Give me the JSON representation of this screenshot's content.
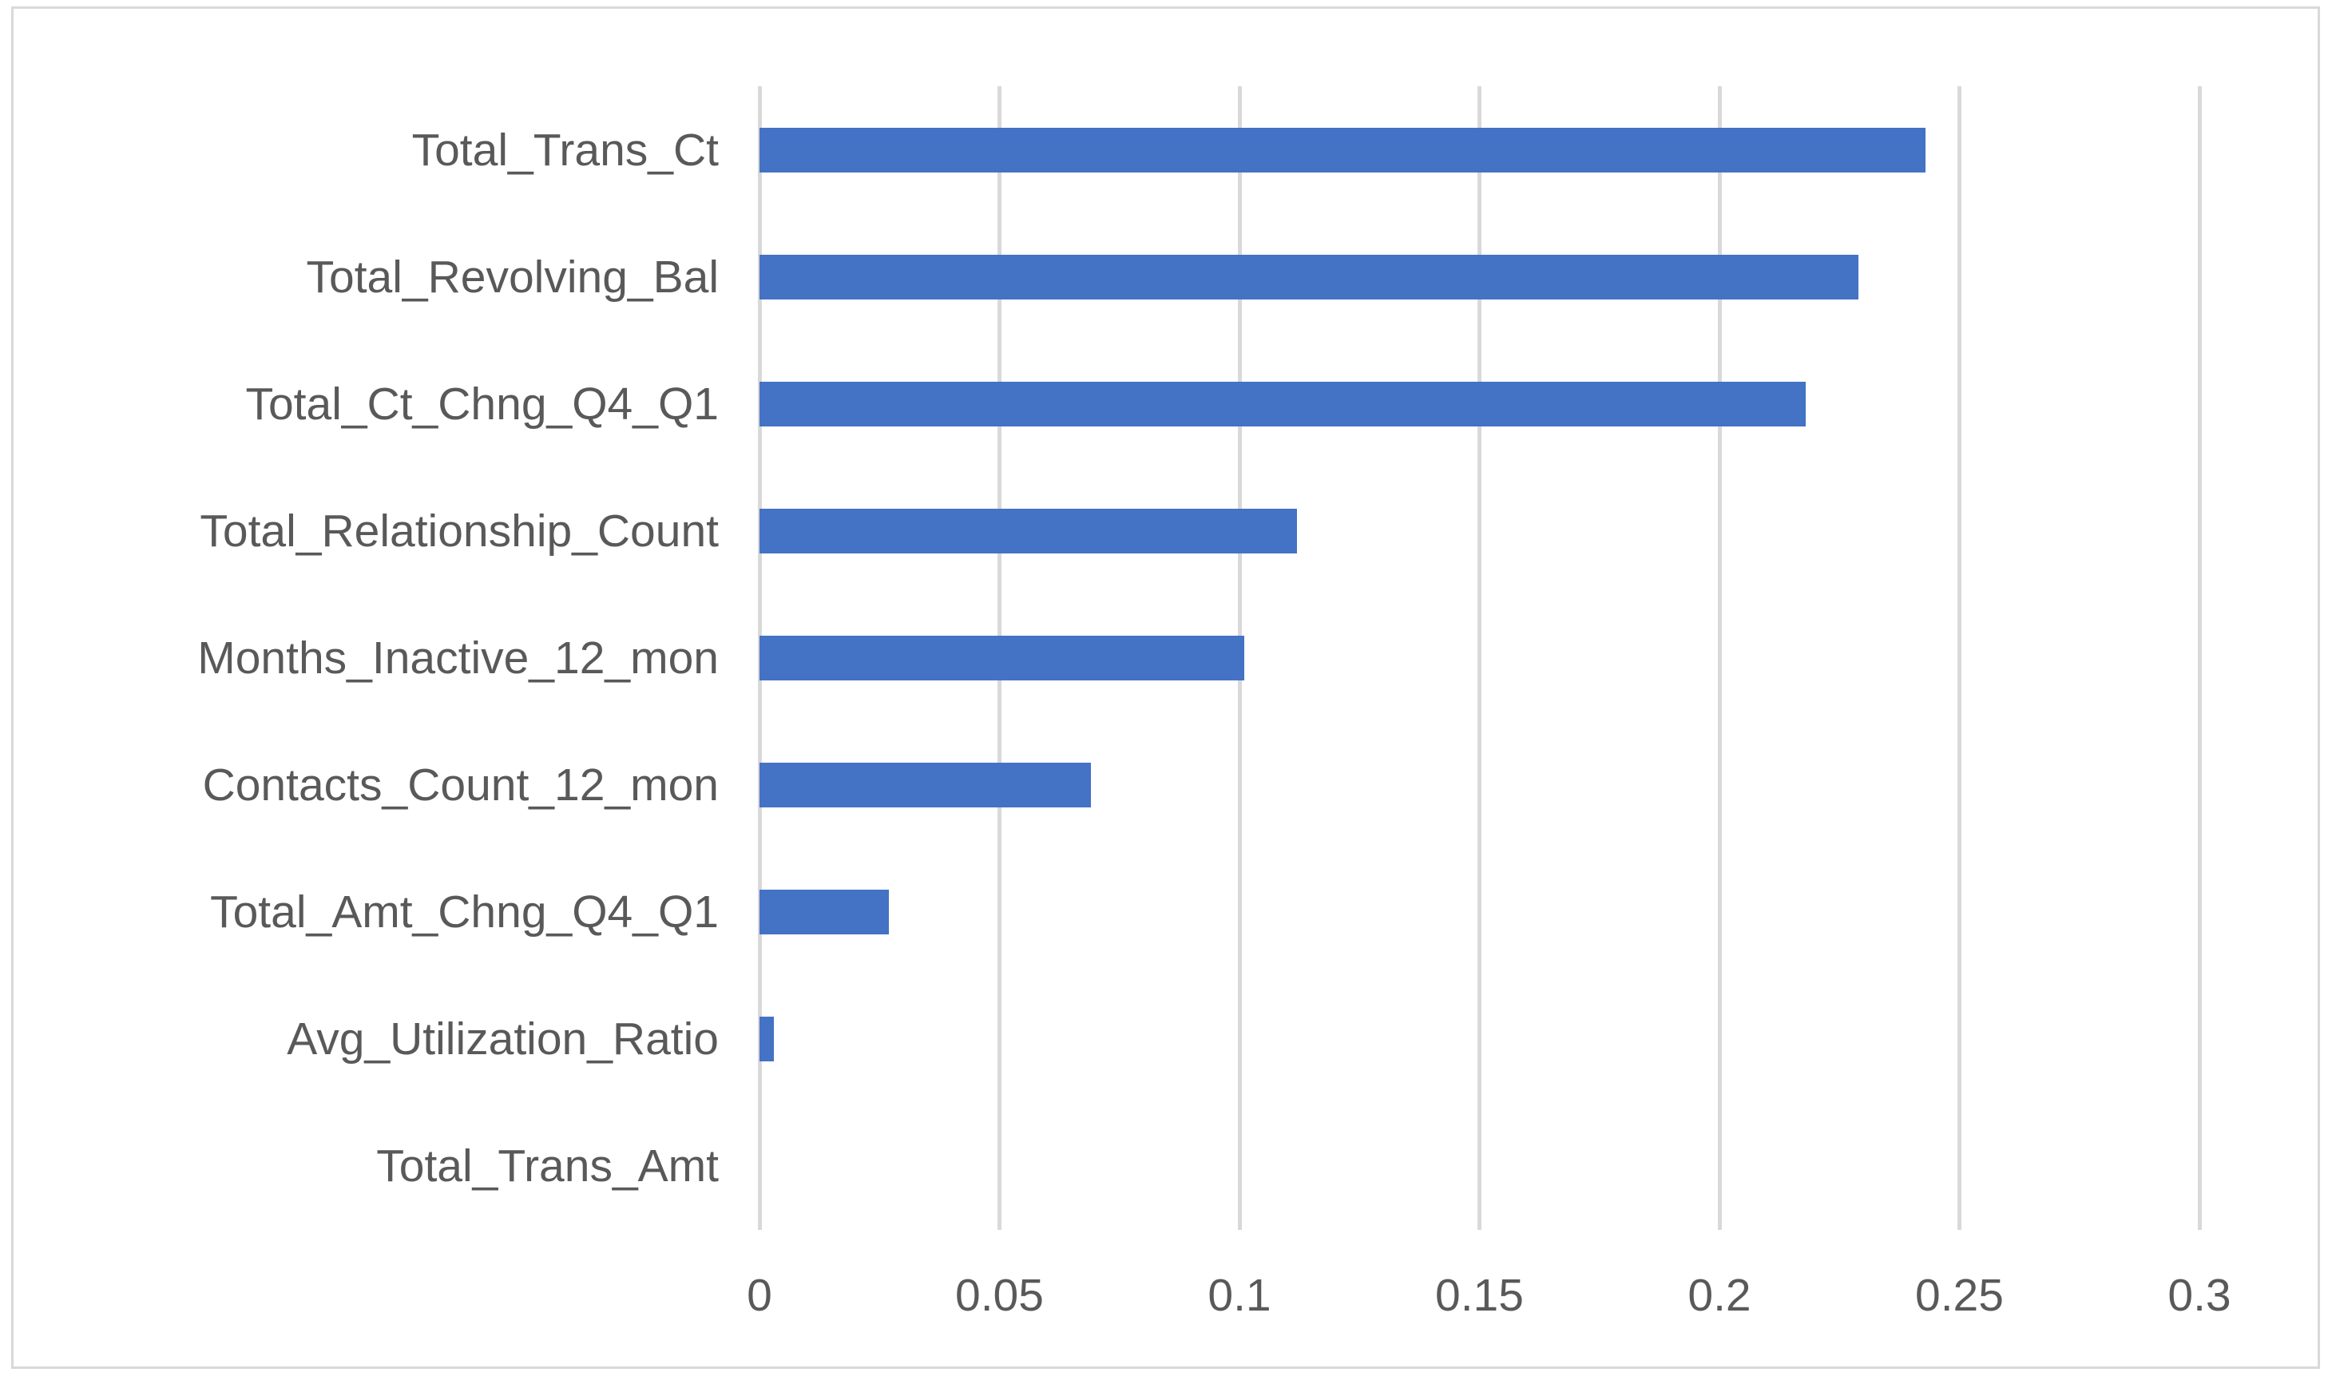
{
  "chart_data": {
    "type": "bar",
    "orientation": "horizontal",
    "title": "",
    "xlabel": "",
    "ylabel": "",
    "categories": [
      "Total_Trans_Ct",
      "Total_Revolving_Bal",
      "Total_Ct_Chng_Q4_Q1",
      "Total_Relationship_Count",
      "Months_Inactive_12_mon",
      "Contacts_Count_12_mon",
      "Total_Amt_Chng_Q4_Q1",
      "Avg_Utilization_Ratio",
      "Total_Trans_Amt"
    ],
    "values": [
      0.243,
      0.229,
      0.218,
      0.112,
      0.101,
      0.069,
      0.027,
      0.003,
      0
    ],
    "xlim": [
      0,
      0.3
    ],
    "xticks": [
      0,
      0.05,
      0.1,
      0.15,
      0.2,
      0.25,
      0.3
    ],
    "tick_labels": [
      "0",
      "0.05",
      "0.1",
      "0.15",
      "0.2",
      "0.25",
      "0.3"
    ],
    "grid": true,
    "legend": "none",
    "bar_color": "#4472C4",
    "gridline_color": "#D9D9D9",
    "text_color": "#595959",
    "background_color": "#FFFFFF",
    "border_color": "#D9D9D9"
  }
}
